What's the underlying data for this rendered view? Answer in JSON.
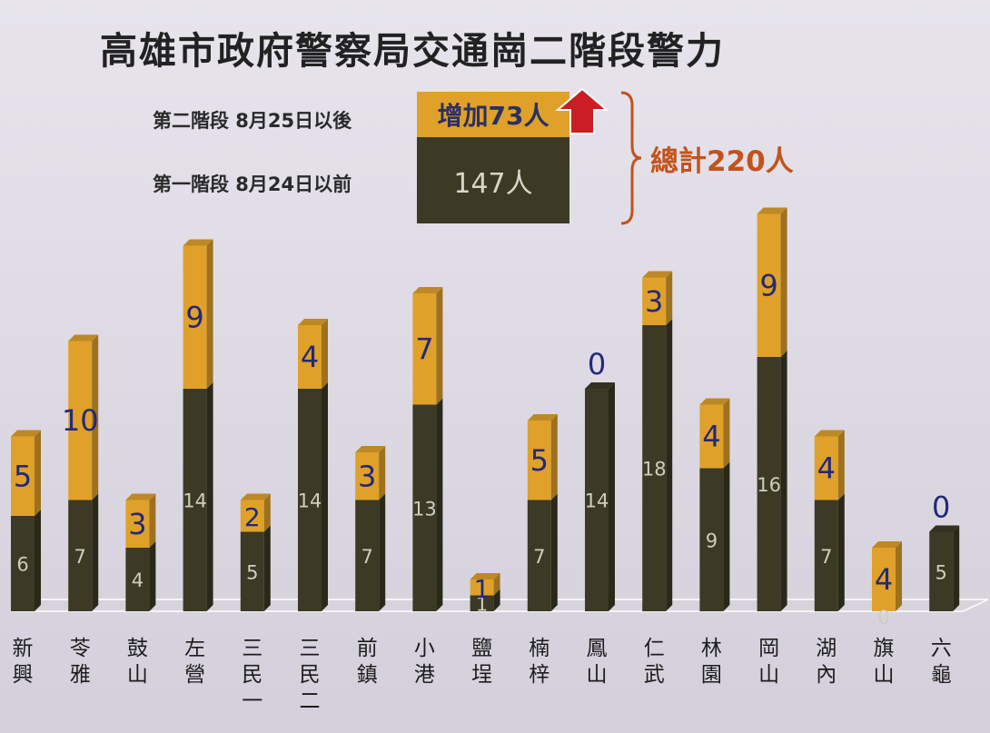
{
  "title": "高雄市政府警察局交通崗二階段警力",
  "summary": {
    "stage2_label": "第二階段 8月25日以後",
    "stage1_label": "第一階段 8月24日以前",
    "stage2_value": "增加73人",
    "stage1_value": "147人",
    "total_label": "總計220人"
  },
  "colors": {
    "stage1": "#3c3a24",
    "stage2": "#e0a12a",
    "top_label": "#23297a",
    "total": "#c2531c",
    "arrow": "#c81e24"
  },
  "chart_data": {
    "type": "bar",
    "stacked": true,
    "categories": [
      "新興",
      "苓雅",
      "鼓山",
      "左營",
      "三民一",
      "三民二",
      "前鎮",
      "小港",
      "鹽埕",
      "楠梓",
      "鳳山",
      "仁武",
      "林園",
      "岡山",
      "湖內",
      "旗山",
      "六龜"
    ],
    "series": [
      {
        "name": "第一階段 8月24日以前",
        "values": [
          6,
          7,
          4,
          14,
          5,
          14,
          7,
          13,
          1,
          7,
          14,
          18,
          9,
          16,
          7,
          0,
          5
        ]
      },
      {
        "name": "第二階段 8月25日以後",
        "values": [
          5,
          10,
          3,
          9,
          2,
          4,
          3,
          7,
          1,
          5,
          0,
          3,
          4,
          9,
          4,
          4,
          0
        ]
      }
    ],
    "total": 220,
    "stage1_total": 147,
    "stage2_total": 73
  }
}
